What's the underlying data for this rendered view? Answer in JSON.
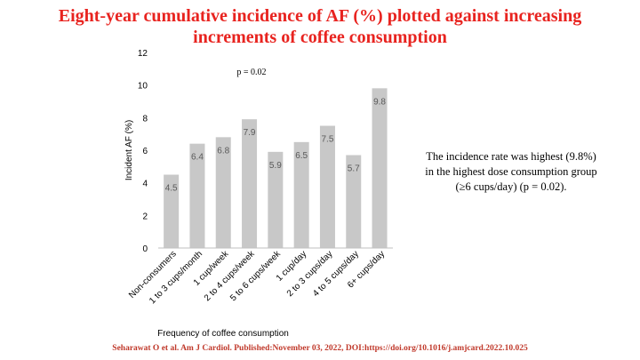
{
  "slide": {
    "title_line1": "Eight-year cumulative incidence of AF (%) plotted against increasing",
    "title_line2": "increments of coffee consumption",
    "note_line1": "The incidence rate was highest (9.8%)",
    "note_line2": "in the highest dose consumption group",
    "note_line3": "(≥6 cups/day) (p = 0.02).",
    "citation": "Seharawat O et al. Am J Cardiol. Published:November 03, 2022, DOI:https://doi.org/10.1016/j.amjcard.2022.10.025"
  },
  "colors": {
    "title": "#e8231f",
    "bar": "#c8c8c8",
    "citation": "#c0392b"
  },
  "chart_data": {
    "type": "bar",
    "categories": [
      "Non-consumers",
      "1 to 3 cups/month",
      "1 cup/week",
      "2 to 4 cups/week",
      "5 to 6 cups/week",
      "1 cup/day",
      "2 to 3 cups/day",
      "4 to 5 cups/day",
      "6+ cups/day"
    ],
    "values": [
      4.5,
      6.4,
      6.8,
      7.9,
      5.9,
      6.5,
      7.5,
      5.7,
      9.8
    ],
    "data_labels": [
      "4.5",
      "6.4",
      "6.8",
      "7.9",
      "5.9",
      "6.5",
      "7.5",
      "5.7",
      "9.8"
    ],
    "xlabel": "Frequency of coffee consumption",
    "ylabel": "Incident AF (%)",
    "ylim": [
      0,
      12
    ],
    "yticks": [
      0,
      2,
      4,
      6,
      8,
      10,
      12
    ],
    "annotation": "p = 0.02",
    "grid": false,
    "legend": "none"
  }
}
